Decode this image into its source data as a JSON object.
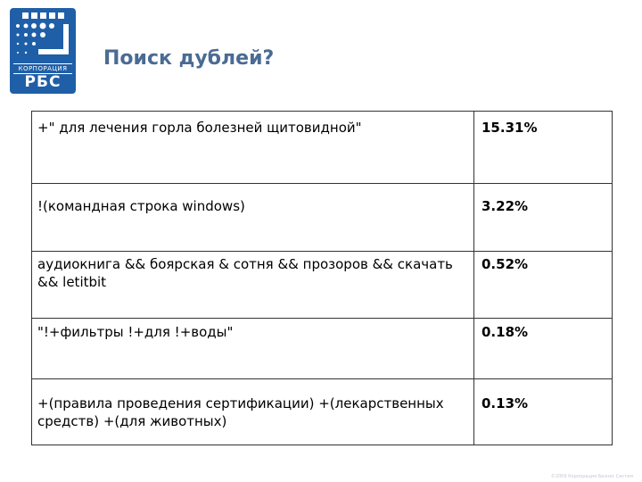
{
  "logo": {
    "caption": "КОРПОРАЦИЯ",
    "word": "РБС"
  },
  "title": "Поиск дублей?",
  "rows": [
    {
      "query": " +\" для лечения горла болезней щитовидной\"",
      "percent": "15.31%"
    },
    {
      "query": "!(командная строка windows)",
      "percent": "3.22%"
    },
    {
      "query": "аудиокнига && боярская & сотня && прозоров && скачать && letitbit",
      "percent": "0.52%"
    },
    {
      "query": "\"!+фильтры !+для !+воды\"",
      "percent": "0.18%"
    },
    {
      "query": "+(правила проведения сертификации) +(лекарственных средств) +(для животных)",
      "percent": "0.13%"
    }
  ],
  "footer": "©2009 Корпорация Бизнес Систем"
}
